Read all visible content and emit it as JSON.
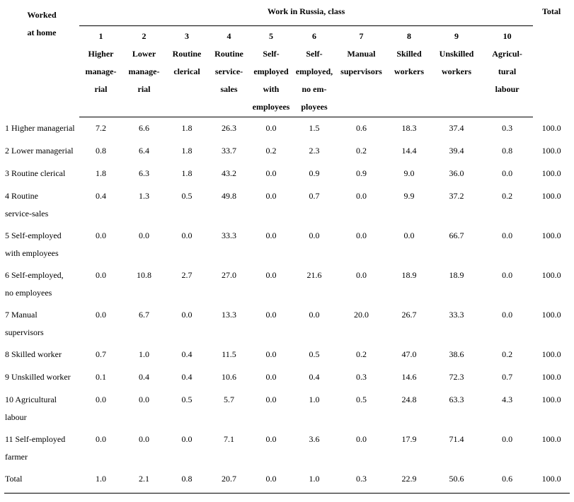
{
  "header": {
    "row_label": "Worked\nat home",
    "group": "Work in Russia, class",
    "total": "Total",
    "columns": [
      {
        "num": "1",
        "label": "Higher\nmanage-\nrial"
      },
      {
        "num": "2",
        "label": "Lower\nmanage-\nrial"
      },
      {
        "num": "3",
        "label": "Routine\nclerical"
      },
      {
        "num": "4",
        "label": "Routine\nservice-\nsales"
      },
      {
        "num": "5",
        "label": "Self-\nemployed\nwith\nemployees"
      },
      {
        "num": "6",
        "label": "Self-\nemployed,\nno em-\nployees"
      },
      {
        "num": "7",
        "label": "Manual\nsupervisors"
      },
      {
        "num": "8",
        "label": "Skilled\nworkers"
      },
      {
        "num": "9",
        "label": "Unskilled\nworkers"
      },
      {
        "num": "10",
        "label": "Agricul-\ntural\nlabour"
      }
    ]
  },
  "rows": [
    {
      "label": "1 Higher managerial",
      "values": [
        "7.2",
        "6.6",
        "1.8",
        "26.3",
        "0.0",
        "1.5",
        "0.6",
        "18.3",
        "37.4",
        "0.3"
      ],
      "total": "100.0"
    },
    {
      "label": "2 Lower managerial",
      "values": [
        "0.8",
        "6.4",
        "1.8",
        "33.7",
        "0.2",
        "2.3",
        "0.2",
        "14.4",
        "39.4",
        "0.8"
      ],
      "total": "100.0"
    },
    {
      "label": "3 Routine clerical",
      "values": [
        "1.8",
        "6.3",
        "1.8",
        "43.2",
        "0.0",
        "0.9",
        "0.9",
        "9.0",
        "36.0",
        "0.0"
      ],
      "total": "100.0"
    },
    {
      "label": "4 Routine\nservice-sales",
      "values": [
        "0.4",
        "1.3",
        "0.5",
        "49.8",
        "0.0",
        "0.7",
        "0.0",
        "9.9",
        "37.2",
        "0.2"
      ],
      "total": "100.0"
    },
    {
      "label": "5 Self-employed\nwith employees",
      "values": [
        "0.0",
        "0.0",
        "0.0",
        "33.3",
        "0.0",
        "0.0",
        "0.0",
        "0.0",
        "66.7",
        "0.0"
      ],
      "total": "100.0"
    },
    {
      "label": "6 Self-employed,\nno employees",
      "values": [
        "0.0",
        "10.8",
        "2.7",
        "27.0",
        "0.0",
        "21.6",
        "0.0",
        "18.9",
        "18.9",
        "0.0"
      ],
      "total": "100.0"
    },
    {
      "label": "7 Manual\nsupervisors",
      "values": [
        "0.0",
        "6.7",
        "0.0",
        "13.3",
        "0.0",
        "0.0",
        "20.0",
        "26.7",
        "33.3",
        "0.0"
      ],
      "total": "100.0"
    },
    {
      "label": "8 Skilled worker",
      "values": [
        "0.7",
        "1.0",
        "0.4",
        "11.5",
        "0.0",
        "0.5",
        "0.2",
        "47.0",
        "38.6",
        "0.2"
      ],
      "total": "100.0"
    },
    {
      "label": "9 Unskilled worker",
      "values": [
        "0.1",
        "0.4",
        "0.4",
        "10.6",
        "0.0",
        "0.4",
        "0.3",
        "14.6",
        "72.3",
        "0.7"
      ],
      "total": "100.0"
    },
    {
      "label": "10 Agricultural\nlabour",
      "values": [
        "0.0",
        "0.0",
        "0.5",
        "5.7",
        "0.0",
        "1.0",
        "0.5",
        "24.8",
        "63.3",
        "4.3"
      ],
      "total": "100.0"
    },
    {
      "label": "11 Self-employed\nfarmer",
      "values": [
        "0.0",
        "0.0",
        "0.0",
        "7.1",
        "0.0",
        "3.6",
        "0.0",
        "17.9",
        "71.4",
        "0.0"
      ],
      "total": "100.0"
    },
    {
      "label": "Total",
      "values": [
        "1.0",
        "2.1",
        "0.8",
        "20.7",
        "0.0",
        "1.0",
        "0.3",
        "22.9",
        "50.6",
        "0.6"
      ],
      "total": "100.0"
    }
  ]
}
